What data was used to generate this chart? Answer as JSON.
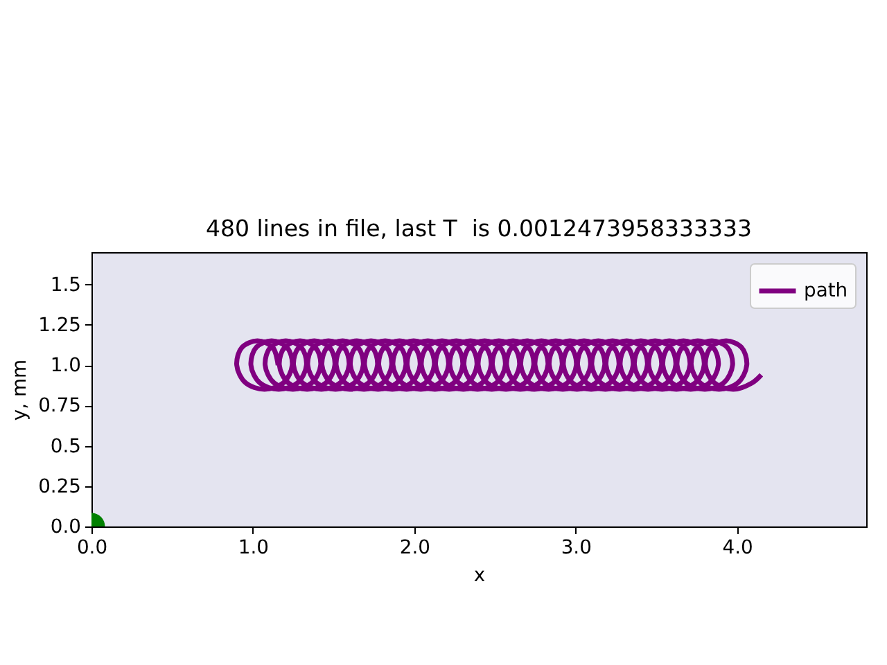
{
  "chart_data": {
    "type": "line",
    "title": "480 lines in file, last T  is 0.0012473958333333",
    "xlabel": "x",
    "ylabel": "y, mm",
    "xlim": [
      0,
      4.8
    ],
    "ylim": [
      0,
      1.7
    ],
    "xticks": [
      {
        "value": 0,
        "label": "0.0"
      },
      {
        "value": 1,
        "label": "1.0"
      },
      {
        "value": 2,
        "label": "2.0"
      },
      {
        "value": 3,
        "label": "3.0"
      },
      {
        "value": 4,
        "label": "4.0"
      }
    ],
    "yticks": [
      {
        "value": 0,
        "label": "0.0"
      },
      0.25,
      0.5,
      0.75,
      {
        "value": 1,
        "label": "1.0"
      },
      1.25,
      1.5
    ],
    "legend": "top right",
    "series": [
      {
        "name": "path",
        "color": "#800080",
        "x": [
          1.156,
          1.123,
          1.028,
          0.933,
          0.9,
          0.955,
          1.072,
          1.189,
          1.244,
          1.211,
          1.116,
          1.021,
          0.988,
          1.043,
          1.16,
          1.277,
          1.332,
          1.299,
          1.204,
          1.109,
          1.076,
          1.131,
          1.248,
          1.365,
          1.42,
          1.387,
          1.292,
          1.197,
          1.164,
          1.219,
          1.336,
          1.453,
          1.508,
          1.475,
          1.38,
          1.285,
          1.252,
          1.307,
          1.424,
          1.541,
          1.596,
          1.563,
          1.468,
          1.373,
          1.34,
          1.395,
          1.512,
          1.629,
          1.684,
          1.651,
          1.556,
          1.461,
          1.428,
          1.483,
          1.6,
          1.717,
          1.772,
          1.739,
          1.644,
          1.549,
          1.516,
          1.571,
          1.688,
          1.805,
          1.86,
          1.827,
          1.732,
          1.637,
          1.604,
          1.659,
          1.776,
          1.893,
          1.948,
          1.915,
          1.82,
          1.725,
          1.692,
          1.747,
          1.864,
          1.981,
          2.036,
          2.003,
          1.908,
          1.813,
          1.78,
          1.835,
          1.952,
          2.069,
          2.124,
          2.091,
          1.996,
          1.901,
          1.868,
          1.923,
          2.04,
          2.157,
          2.212,
          2.179,
          2.084,
          1.989,
          1.956,
          2.011,
          2.128,
          2.245,
          2.3,
          2.267,
          2.172,
          2.077,
          2.044,
          2.099,
          2.216,
          2.333,
          2.388,
          2.355,
          2.26,
          2.165,
          2.132,
          2.187,
          2.304,
          2.421,
          2.476,
          2.443,
          2.348,
          2.253,
          2.22,
          2.275,
          2.392,
          2.509,
          2.564,
          2.531,
          2.436,
          2.341,
          2.308,
          2.363,
          2.48,
          2.597,
          2.652,
          2.619,
          2.524,
          2.429,
          2.396,
          2.451,
          2.568,
          2.685,
          2.74,
          2.707,
          2.612,
          2.517,
          2.484,
          2.539,
          2.656,
          2.773,
          2.828,
          2.795,
          2.7,
          2.605,
          2.572,
          2.627,
          2.744,
          2.861,
          2.916,
          2.883,
          2.788,
          2.693,
          2.66,
          2.715,
          2.832,
          2.949,
          3.004,
          2.971,
          2.876,
          2.781,
          2.748,
          2.803,
          2.92,
          3.037,
          3.092,
          3.059,
          2.964,
          2.869,
          2.836,
          2.891,
          3.008,
          3.125,
          3.18,
          3.147,
          3.052,
          2.957,
          2.924,
          2.979,
          3.096,
          3.213,
          3.268,
          3.235,
          3.14,
          3.045,
          3.012,
          3.067,
          3.184,
          3.301,
          3.356,
          3.323,
          3.228,
          3.133,
          3.1,
          3.155,
          3.272,
          3.389,
          3.444,
          3.411,
          3.316,
          3.221,
          3.188,
          3.243,
          3.36,
          3.477,
          3.532,
          3.499,
          3.404,
          3.309,
          3.276,
          3.331,
          3.448,
          3.565,
          3.62,
          3.587,
          3.492,
          3.397,
          3.364,
          3.419,
          3.536,
          3.653,
          3.708,
          3.675,
          3.58,
          3.485,
          3.452,
          3.507,
          3.624,
          3.741,
          3.796,
          3.763,
          3.668,
          3.573,
          3.54,
          3.595,
          3.712,
          3.829,
          3.884,
          3.851,
          3.756,
          3.661,
          3.628,
          3.683,
          3.8,
          3.917,
          3.972,
          3.939,
          3.844,
          3.749,
          3.716,
          3.771,
          3.888,
          4.005,
          4.06,
          4.027,
          3.932,
          3.837,
          3.804,
          3.859,
          3.976,
          4.093,
          4.15
        ],
        "values": [
          1,
          1.11,
          1.15,
          1.11,
          1,
          0.89,
          0.85,
          0.89,
          1,
          1.11,
          1.15,
          1.11,
          1,
          0.89,
          0.85,
          0.89,
          1,
          1.11,
          1.15,
          1.11,
          1,
          0.89,
          0.85,
          0.89,
          1,
          1.11,
          1.15,
          1.11,
          1,
          0.89,
          0.85,
          0.89,
          1,
          1.11,
          1.15,
          1.11,
          1,
          0.89,
          0.85,
          0.89,
          1,
          1.11,
          1.15,
          1.11,
          1,
          0.89,
          0.85,
          0.89,
          1,
          1.11,
          1.15,
          1.11,
          1,
          0.89,
          0.85,
          0.89,
          1,
          1.11,
          1.15,
          1.11,
          1,
          0.89,
          0.85,
          0.89,
          1,
          1.11,
          1.15,
          1.11,
          1,
          0.89,
          0.85,
          0.89,
          1,
          1.11,
          1.15,
          1.11,
          1,
          0.89,
          0.85,
          0.89,
          1,
          1.11,
          1.15,
          1.11,
          1,
          0.89,
          0.85,
          0.89,
          1,
          1.11,
          1.15,
          1.11,
          1,
          0.89,
          0.85,
          0.89,
          1,
          1.11,
          1.15,
          1.11,
          1,
          0.89,
          0.85,
          0.89,
          1,
          1.11,
          1.15,
          1.11,
          1,
          0.89,
          0.85,
          0.89,
          1,
          1.11,
          1.15,
          1.11,
          1,
          0.89,
          0.85,
          0.89,
          1,
          1.11,
          1.15,
          1.11,
          1,
          0.89,
          0.85,
          0.89,
          1,
          1.11,
          1.15,
          1.11,
          1,
          0.89,
          0.85,
          0.89,
          1,
          1.11,
          1.15,
          1.11,
          1,
          0.89,
          0.85,
          0.89,
          1,
          1.11,
          1.15,
          1.11,
          1,
          0.89,
          0.85,
          0.89,
          1,
          1.11,
          1.15,
          1.11,
          1,
          0.89,
          0.85,
          0.89,
          1,
          1.11,
          1.15,
          1.11,
          1,
          0.89,
          0.85,
          0.89,
          1,
          1.11,
          1.15,
          1.11,
          1,
          0.89,
          0.85,
          0.89,
          1,
          1.11,
          1.15,
          1.11,
          1,
          0.89,
          0.85,
          0.89,
          1,
          1.11,
          1.15,
          1.11,
          1,
          0.89,
          0.85,
          0.89,
          1,
          1.11,
          1.15,
          1.11,
          1,
          0.89,
          0.85,
          0.89,
          1,
          1.11,
          1.15,
          1.11,
          1,
          0.89,
          0.85,
          0.89,
          1,
          1.11,
          1.15,
          1.11,
          1,
          0.89,
          0.85,
          0.89,
          1,
          1.11,
          1.15,
          1.11,
          1,
          0.89,
          0.85,
          0.89,
          1,
          1.11,
          1.15,
          1.11,
          1,
          0.89,
          0.85,
          0.89,
          1,
          1.11,
          1.15,
          1.11,
          1,
          0.89,
          0.85,
          0.89,
          1,
          1.11,
          1.15,
          1.11,
          1,
          0.89,
          0.85,
          0.89,
          1,
          1.11,
          1.15,
          1.11,
          1,
          0.89,
          0.85,
          0.89,
          1,
          1.11,
          1.15,
          1.11,
          1,
          0.89,
          0.85,
          0.89,
          1,
          1.11,
          1.15,
          1.11,
          1,
          0.89,
          0.85,
          0.89,
          0.94
        ]
      },
      {
        "type": "scatter",
        "color": "#008000",
        "x": [
          0
        ],
        "values": [
          0
        ]
      }
    ]
  }
}
